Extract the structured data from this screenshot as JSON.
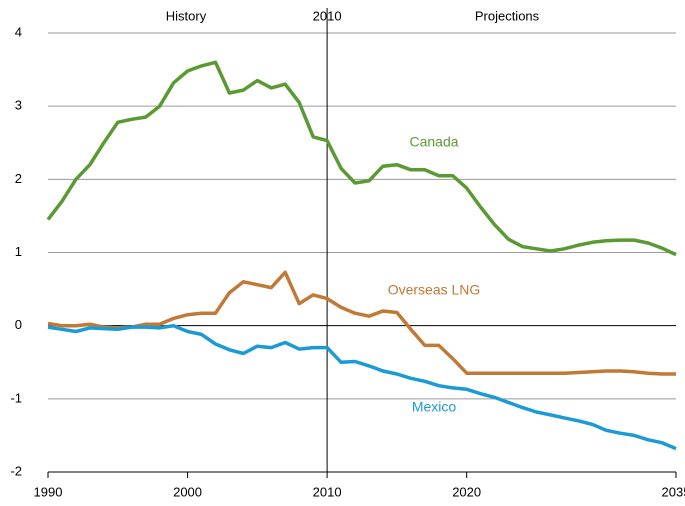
{
  "chart_data": {
    "type": "line",
    "annotations": [
      "History",
      "Projections"
    ],
    "divider_x": 2010,
    "x": [
      1990,
      1991,
      1992,
      1993,
      1994,
      1995,
      1996,
      1997,
      1998,
      1999,
      2000,
      2001,
      2002,
      2003,
      2004,
      2005,
      2006,
      2007,
      2008,
      2009,
      2010,
      2011,
      2012,
      2013,
      2014,
      2015,
      2016,
      2017,
      2018,
      2019,
      2020,
      2021,
      2022,
      2023,
      2024,
      2025,
      2026,
      2027,
      2028,
      2029,
      2030,
      2031,
      2032,
      2033,
      2034,
      2035
    ],
    "series": [
      {
        "name": "Canada",
        "color": "#5a9a32",
        "values": [
          1.45,
          1.7,
          2.0,
          2.2,
          2.5,
          2.78,
          2.82,
          2.85,
          3.0,
          3.32,
          3.48,
          3.55,
          3.6,
          3.18,
          3.22,
          3.35,
          3.25,
          3.3,
          3.05,
          2.58,
          2.53,
          2.15,
          1.95,
          1.98,
          2.18,
          2.2,
          2.13,
          2.13,
          2.05,
          2.05,
          1.88,
          1.62,
          1.38,
          1.18,
          1.08,
          1.05,
          1.02,
          1.05,
          1.1,
          1.14,
          1.16,
          1.17,
          1.17,
          1.13,
          1.06,
          0.97
        ]
      },
      {
        "name": "Overseas LNG",
        "color": "#c07a35",
        "values": [
          0.03,
          0,
          0,
          0.02,
          -0.02,
          -0.03,
          -0.02,
          0.02,
          0.02,
          0.1,
          0.15,
          0.17,
          0.17,
          0.45,
          0.6,
          0.56,
          0.52,
          0.73,
          0.3,
          0.42,
          0.37,
          0.25,
          0.17,
          0.13,
          0.2,
          0.18,
          -0.05,
          -0.27,
          -0.27,
          -0.45,
          -0.65,
          -0.65,
          -0.65,
          -0.65,
          -0.65,
          -0.65,
          -0.65,
          -0.65,
          -0.64,
          -0.63,
          -0.62,
          -0.62,
          -0.63,
          -0.65,
          -0.66,
          -0.66
        ]
      },
      {
        "name": "Mexico",
        "color": "#1b9ad6",
        "values": [
          -0.02,
          -0.05,
          -0.08,
          -0.03,
          -0.04,
          -0.05,
          -0.02,
          -0.02,
          -0.03,
          0,
          -0.08,
          -0.12,
          -0.25,
          -0.33,
          -0.38,
          -0.28,
          -0.3,
          -0.23,
          -0.32,
          -0.3,
          -0.3,
          -0.5,
          -0.49,
          -0.55,
          -0.62,
          -0.66,
          -0.72,
          -0.76,
          -0.82,
          -0.85,
          -0.87,
          -0.93,
          -0.98,
          -1.05,
          -1.12,
          -1.18,
          -1.22,
          -1.26,
          -1.3,
          -1.35,
          -1.43,
          -1.47,
          -1.5,
          -1.56,
          -1.6,
          -1.68
        ]
      }
    ],
    "xlim": [
      1990,
      2035
    ],
    "xticks": [
      1990,
      2000,
      2010,
      2020,
      2035
    ],
    "ylim": [
      -2,
      4
    ],
    "yticks": [
      -2,
      -1,
      0,
      1,
      2,
      3,
      4
    ],
    "grid": true
  }
}
